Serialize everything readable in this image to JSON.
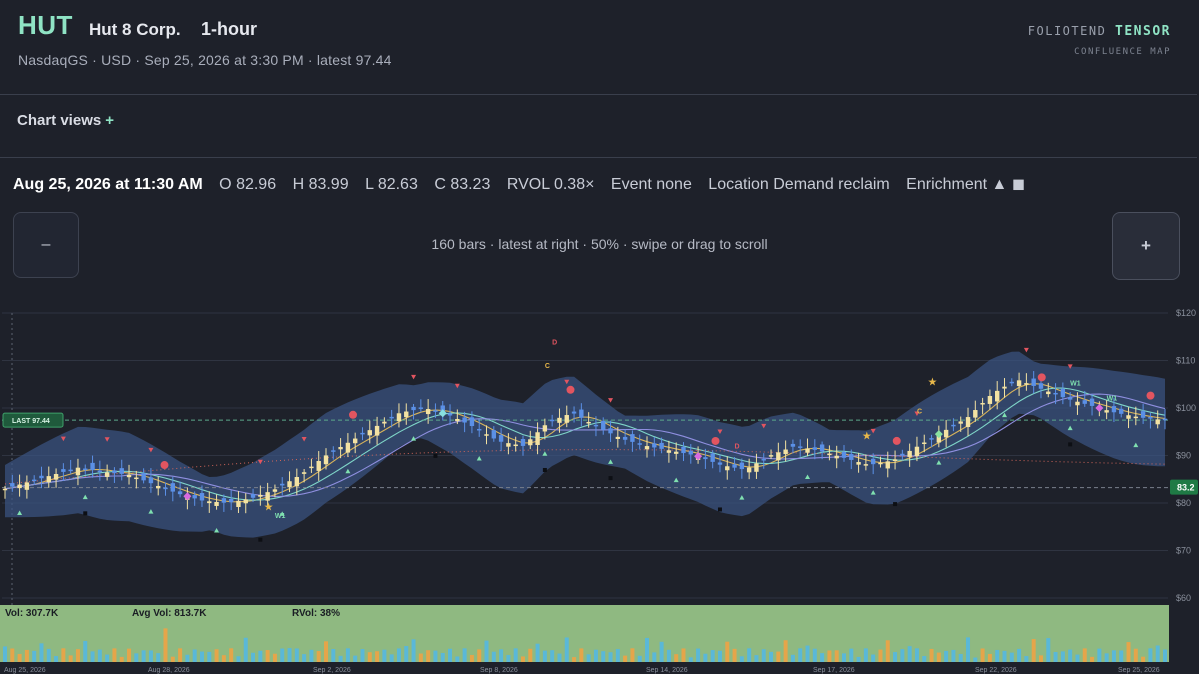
{
  "header": {
    "ticker": "HUT",
    "company": "Hut 8 Corp.",
    "timeframe": "1-hour",
    "subline": "NasdaqGS · USD · Sep 25, 2026 at 3:30 PM · latest 97.44",
    "brand_name": "FOLIOTEND",
    "brand_accent": "TENSOR",
    "brand_sub": "CONFLUENCE MAP"
  },
  "views": {
    "label": "Chart views",
    "plus": "+"
  },
  "ohlc": {
    "date": "Aug 25, 2026 at 11:30 AM",
    "open": "O 82.96",
    "high": "H 83.99",
    "low": "L 82.63",
    "close": "C 83.23",
    "rvol": "RVOL 0.38×",
    "event": "Event none",
    "location": "Location Demand reclaim",
    "enrichment": "Enrichment ▲ ◼"
  },
  "controls": {
    "zoom_out": "–",
    "zoom_in": "+",
    "hint": "160 bars · latest at right · 50% · swipe or drag to scroll"
  },
  "chart_data": {
    "type": "candlestick",
    "y_ticks": [
      "$120",
      "$110",
      "$100",
      "$90",
      "$80",
      "$70",
      "$60"
    ],
    "ylim": [
      60,
      120
    ],
    "last_label": "LAST 97.44",
    "last_value": 97.44,
    "cursor_label": "83.2",
    "cursor_value": 83.23,
    "x_ticks": [
      "Aug 25, 2026",
      "Aug 28, 2026",
      "Sep 2, 2026",
      "Sep 8, 2026",
      "Sep 14, 2026",
      "Sep 17, 2026",
      "Sep 22, 2026",
      "Sep 25, 2026"
    ],
    "close_path": [
      83,
      84.5,
      86,
      87.5,
      86.5,
      86,
      84,
      82,
      80.5,
      80,
      81,
      83,
      86,
      90,
      93,
      96,
      99,
      100,
      98.5,
      96,
      93,
      92,
      97,
      99,
      96,
      93.5,
      92,
      91,
      90,
      88,
      87,
      90,
      92,
      91,
      89.5,
      88,
      89,
      92,
      95,
      98,
      103,
      106,
      104,
      102,
      100.5,
      99,
      98,
      97.44
    ],
    "volume_stats": {
      "vol": "Vol: 307.7K",
      "avg": "Avg Vol: 813.7K",
      "rvol": "RVol: 38%"
    },
    "annotations": [
      "D",
      "C",
      "D",
      "D",
      "C",
      "W1",
      "W1",
      "W1"
    ],
    "colors": {
      "bull": "#f3e2a2",
      "bear": "#5b90e6",
      "band": "#3a5684",
      "last": "#3fa06a",
      "volume_bg": "#8fb981",
      "vol_bar_a": "#5ab8d8",
      "vol_bar_b": "#e5a54a",
      "signal": "#e25560"
    }
  }
}
